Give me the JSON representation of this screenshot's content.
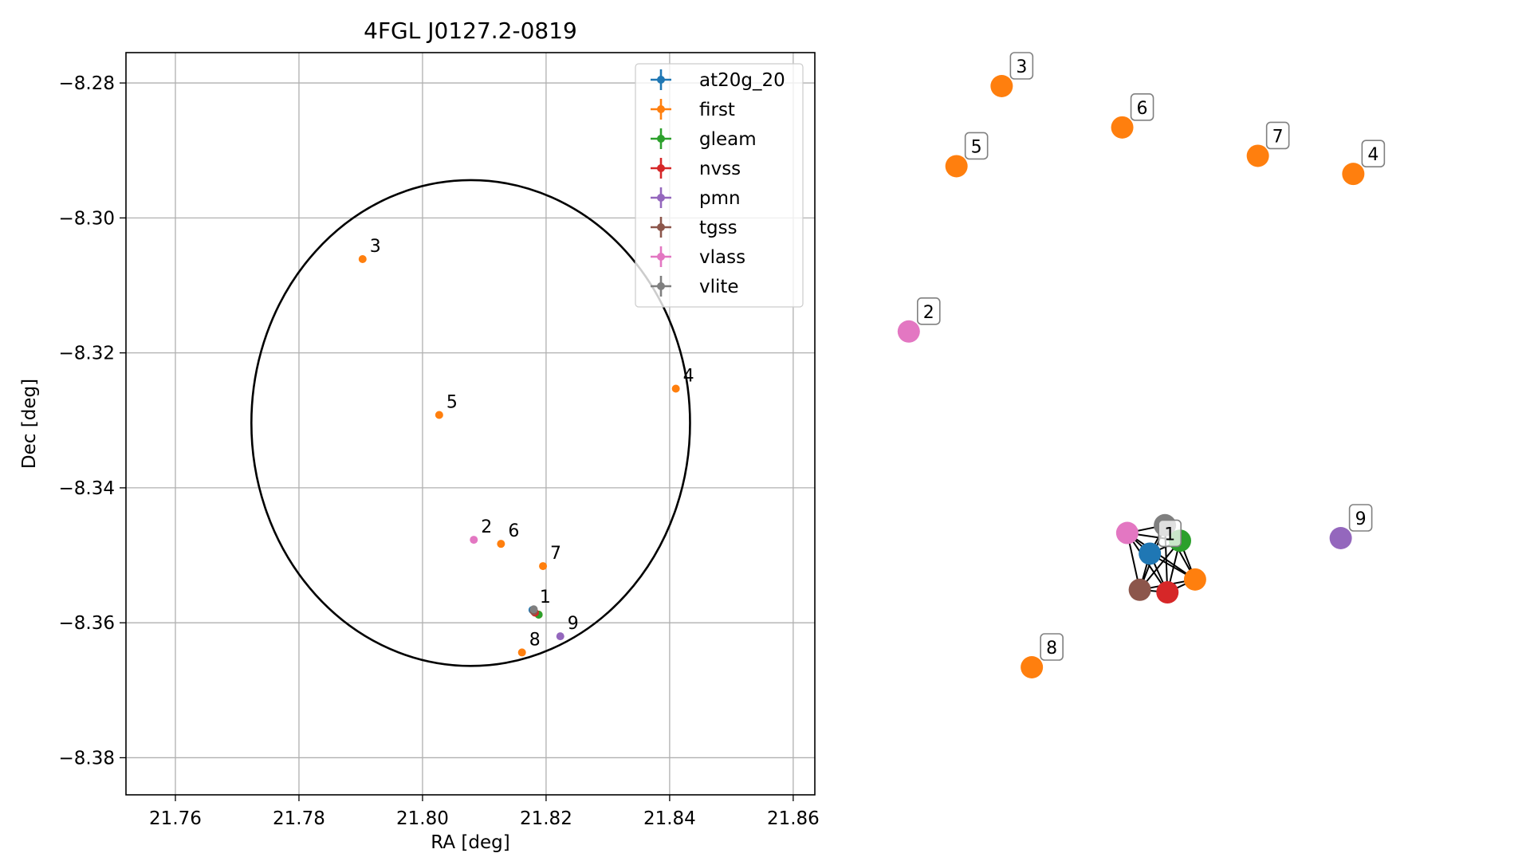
{
  "chart_data": [
    {
      "type": "scatter",
      "title": "4FGL J0127.2-0819",
      "xlabel": "RA [deg]",
      "ylabel": "Dec [deg]",
      "xlim": [
        21.752,
        21.8635
      ],
      "ylim": [
        -8.3855,
        -8.2755
      ],
      "xticks": [
        21.76,
        21.78,
        21.8,
        21.82,
        21.84,
        21.86
      ],
      "xtick_labels": [
        "21.76",
        "21.78",
        "21.80",
        "21.82",
        "21.84",
        "21.86"
      ],
      "yticks": [
        -8.28,
        -8.3,
        -8.32,
        -8.34,
        -8.36,
        -8.38
      ],
      "ytick_labels": [
        "−8.28",
        "−8.30",
        "−8.32",
        "−8.34",
        "−8.36",
        "−8.38"
      ],
      "grid": true,
      "legend_position": "top-right",
      "error_ellipse": {
        "center": [
          21.8078,
          -8.3304
        ],
        "semi_axes": [
          0.0355,
          0.036
        ]
      },
      "series": [
        {
          "name": "at20g_20",
          "color": "#1f77b4",
          "points": [
            {
              "x": 21.8178,
              "y": -8.3581,
              "label": "1"
            }
          ]
        },
        {
          "name": "first",
          "color": "#ff7f0e",
          "points": [
            {
              "x": 21.7903,
              "y": -8.3061,
              "label": "3"
            },
            {
              "x": 21.841,
              "y": -8.3253,
              "label": "4"
            },
            {
              "x": 21.8027,
              "y": -8.3292,
              "label": "5"
            },
            {
              "x": 21.8127,
              "y": -8.3483,
              "label": "6"
            },
            {
              "x": 21.8195,
              "y": -8.3516,
              "label": "7"
            },
            {
              "x": 21.8161,
              "y": -8.3644,
              "label": "8"
            },
            {
              "x": 21.8188,
              "y": -8.3588,
              "label": ""
            }
          ]
        },
        {
          "name": "gleam",
          "color": "#2ca02c",
          "points": [
            {
              "x": 21.8188,
              "y": -8.3588,
              "label": ""
            }
          ]
        },
        {
          "name": "nvss",
          "color": "#d62728",
          "points": [
            {
              "x": 21.8182,
              "y": -8.3585,
              "label": ""
            }
          ]
        },
        {
          "name": "pmn",
          "color": "#9467bd",
          "points": [
            {
              "x": 21.8223,
              "y": -8.362,
              "label": "9"
            }
          ]
        },
        {
          "name": "tgss",
          "color": "#8c564b",
          "points": [
            {
              "x": 21.818,
              "y": -8.3583,
              "label": ""
            }
          ]
        },
        {
          "name": "vlass",
          "color": "#e377c2",
          "points": [
            {
              "x": 21.8083,
              "y": -8.3477,
              "label": "2"
            }
          ]
        },
        {
          "name": "vlite",
          "color": "#7f7f7f",
          "points": [
            {
              "x": 21.818,
              "y": -8.358,
              "label": ""
            }
          ]
        }
      ]
    },
    {
      "type": "network",
      "nodes": [
        {
          "id": "n3",
          "label": "3",
          "color": "#ff7f0e",
          "x": 0.145,
          "y": 0.975
        },
        {
          "id": "n6",
          "label": "6",
          "color": "#ff7f0e",
          "x": 0.385,
          "y": 0.895
        },
        {
          "id": "n5",
          "label": "5",
          "color": "#ff7f0e",
          "x": 0.055,
          "y": 0.82
        },
        {
          "id": "n7",
          "label": "7",
          "color": "#ff7f0e",
          "x": 0.655,
          "y": 0.84
        },
        {
          "id": "n4",
          "label": "4",
          "color": "#ff7f0e",
          "x": 0.845,
          "y": 0.805
        },
        {
          "id": "n2",
          "label": "2",
          "color": "#e377c2",
          "x": -0.04,
          "y": 0.5
        },
        {
          "id": "vlite",
          "label": "",
          "color": "#7f7f7f",
          "x": 0.47,
          "y": 0.125
        },
        {
          "id": "vlass",
          "label": "",
          "color": "#e377c2",
          "x": 0.395,
          "y": 0.11
        },
        {
          "id": "gleam",
          "label": "",
          "color": "#2ca02c",
          "x": 0.5,
          "y": 0.095
        },
        {
          "id": "at20g",
          "label": "1",
          "color": "#1f77b4",
          "x": 0.44,
          "y": 0.07
        },
        {
          "id": "first1",
          "label": "",
          "color": "#ff7f0e",
          "x": 0.53,
          "y": 0.02
        },
        {
          "id": "tgss",
          "label": "",
          "color": "#8c564b",
          "x": 0.42,
          "y": 0.0
        },
        {
          "id": "nvss",
          "label": "",
          "color": "#d62728",
          "x": 0.475,
          "y": -0.005
        },
        {
          "id": "n9",
          "label": "9",
          "color": "#9467bd",
          "x": 0.82,
          "y": 0.1
        },
        {
          "id": "n8",
          "label": "8",
          "color": "#ff7f0e",
          "x": 0.205,
          "y": -0.15
        }
      ],
      "edges": [
        [
          "vlite",
          "vlass"
        ],
        [
          "vlite",
          "gleam"
        ],
        [
          "vlite",
          "at20g"
        ],
        [
          "vlite",
          "first1"
        ],
        [
          "vlite",
          "tgss"
        ],
        [
          "vlite",
          "nvss"
        ],
        [
          "vlass",
          "gleam"
        ],
        [
          "vlass",
          "at20g"
        ],
        [
          "vlass",
          "first1"
        ],
        [
          "vlass",
          "tgss"
        ],
        [
          "vlass",
          "nvss"
        ],
        [
          "gleam",
          "at20g"
        ],
        [
          "gleam",
          "first1"
        ],
        [
          "gleam",
          "tgss"
        ],
        [
          "gleam",
          "nvss"
        ],
        [
          "at20g",
          "first1"
        ],
        [
          "at20g",
          "tgss"
        ],
        [
          "at20g",
          "nvss"
        ],
        [
          "first1",
          "tgss"
        ],
        [
          "first1",
          "nvss"
        ],
        [
          "tgss",
          "nvss"
        ]
      ]
    }
  ]
}
